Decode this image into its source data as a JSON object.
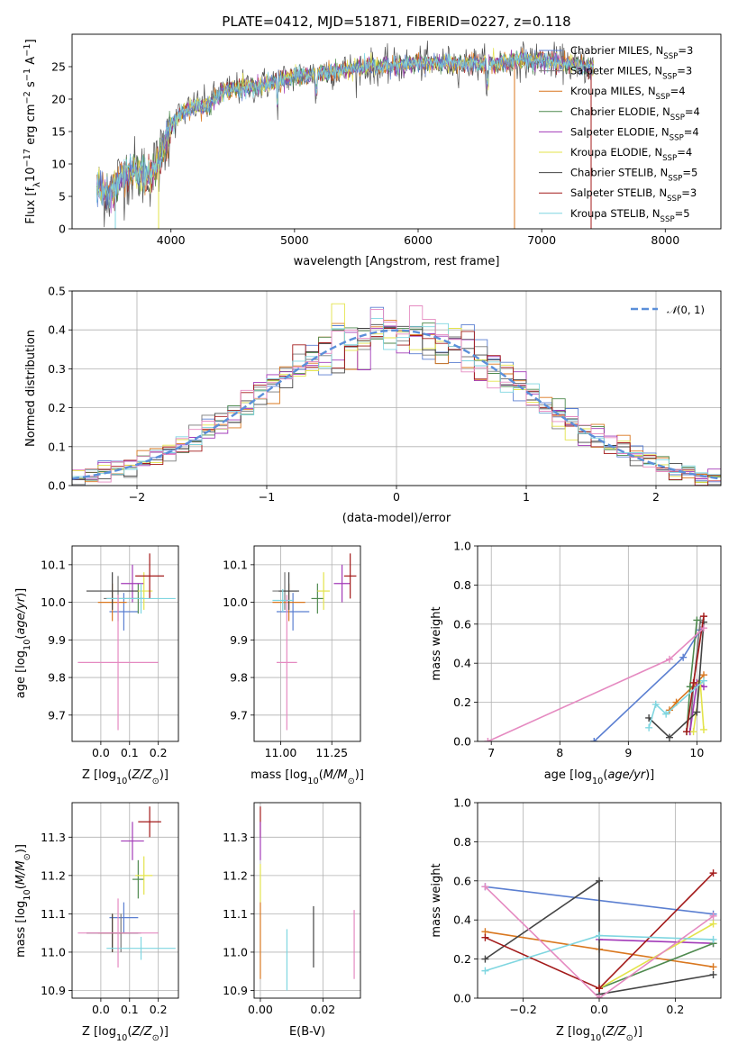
{
  "title": "PLATE=0412, MJD=51871, FIBERID=0227, z=0.118",
  "colors": {
    "Chabrier MILES": "#5b7fd1",
    "Salpeter MILES": "#7a7a7a",
    "Kroupa MILES": "#d9771f",
    "Chabrier ELODIE": "#4f8a4f",
    "Salpeter ELODIE": "#a23ab8",
    "Kroupa ELODIE": "#e3e34a",
    "Chabrier STELIB": "#444444",
    "Salpeter STELIB": "#a31a1a",
    "Kroupa STELIB": "#7fd6e0",
    "pink": "#e58ac1",
    "gaussian": "#5b8fd9",
    "grid": "#b0b0b0"
  },
  "chart_data": [
    {
      "id": "spectrum",
      "type": "line",
      "xlabel": "wavelength [Angstrom, rest frame]",
      "ylabel": "Flux [f_λ10^-17 erg cm^-2 s^-1 A^-1]",
      "xlim": [
        3200,
        8450
      ],
      "ylim": [
        0,
        30
      ],
      "xticks": [
        4000,
        5000,
        6000,
        7000,
        8000
      ],
      "yticks": [
        0,
        5,
        10,
        15,
        20,
        25
      ],
      "legend": "right",
      "series_labels": [
        "Chabrier MILES, N_SSP=3",
        "Salpeter MILES, N_SSP=3",
        "Kroupa MILES, N_SSP=4",
        "Chabrier ELODIE, N_SSP=4",
        "Salpeter ELODIE, N_SSP=4",
        "Kroupa ELODIE, N_SSP=4",
        "Chabrier STELIB, N_SSP=5",
        "Salpeter STELIB, N_SSP=3",
        "Kroupa STELIB, N_SSP=5"
      ],
      "continuum_points": [
        [
          3400,
          6
        ],
        [
          3500,
          5.5
        ],
        [
          3600,
          8
        ],
        [
          3700,
          9
        ],
        [
          3800,
          8
        ],
        [
          3900,
          10
        ],
        [
          4000,
          16
        ],
        [
          4100,
          18
        ],
        [
          4200,
          19
        ],
        [
          4300,
          19
        ],
        [
          4400,
          21
        ],
        [
          4500,
          21.5
        ],
        [
          4700,
          22
        ],
        [
          4800,
          22.5
        ],
        [
          5000,
          23.5
        ],
        [
          5200,
          24
        ],
        [
          5400,
          24.5
        ],
        [
          5600,
          25
        ],
        [
          5800,
          25
        ],
        [
          6000,
          25.5
        ],
        [
          6200,
          25.5
        ],
        [
          6400,
          25.5
        ],
        [
          6600,
          25.5
        ],
        [
          6800,
          26
        ],
        [
          7000,
          26
        ],
        [
          7200,
          25.5
        ],
        [
          7400,
          25
        ]
      ]
    },
    {
      "id": "residuals",
      "type": "step",
      "xlabel": "(data-model)/error",
      "ylabel": "Normed distribution",
      "xlim": [
        -2.5,
        2.5
      ],
      "ylim": [
        0,
        0.5
      ],
      "xticks": [
        -2,
        -1,
        0,
        1,
        2
      ],
      "yticks": [
        0.0,
        0.1,
        0.2,
        0.3,
        0.4,
        0.5
      ],
      "legend_label": "𝒩(0, 1)",
      "legend": "top-right",
      "histograms": 9
    },
    {
      "id": "age_vs_Z",
      "type": "scatter",
      "xlabel": "Z [log10(Z/Z⊙)]",
      "ylabel": "age  [log10(age/yr)]",
      "xlim": [
        -0.1,
        0.27
      ],
      "ylim": [
        9.63,
        10.15
      ],
      "xticks": [
        0.0,
        0.1,
        0.2
      ],
      "yticks": [
        9.7,
        9.8,
        9.9,
        10.0,
        10.1
      ],
      "points": [
        {
          "c": "Chabrier MILES",
          "x": 0.08,
          "xerr": 0.05,
          "y": 9.975,
          "yerr": 0.05
        },
        {
          "c": "Salpeter MILES",
          "x": 0.06,
          "xerr": 0.05,
          "y": 10.01,
          "yerr": 0.06
        },
        {
          "c": "Kroupa MILES",
          "x": 0.04,
          "xerr": 0.05,
          "y": 10.0,
          "yerr": 0.05
        },
        {
          "c": "Chabrier ELODIE",
          "x": 0.13,
          "xerr": 0.02,
          "y": 10.01,
          "yerr": 0.04
        },
        {
          "c": "Salpeter ELODIE",
          "x": 0.11,
          "xerr": 0.04,
          "y": 10.05,
          "yerr": 0.05
        },
        {
          "c": "Kroupa ELODIE",
          "x": 0.15,
          "xerr": 0.03,
          "y": 10.03,
          "yerr": 0.05
        },
        {
          "c": "Chabrier STELIB",
          "x": 0.04,
          "xerr": 0.09,
          "y": 10.03,
          "yerr": 0.05
        },
        {
          "c": "Salpeter STELIB",
          "x": 0.17,
          "xerr": 0.05,
          "y": 10.07,
          "yerr": 0.06
        },
        {
          "c": "Kroupa STELIB",
          "x": 0.14,
          "xerr": 0.12,
          "y": 10.01,
          "yerr": 0.04
        },
        {
          "c": "pink",
          "x": 0.06,
          "xerr": 0.14,
          "y": 9.84,
          "yerr": 0.18
        }
      ]
    },
    {
      "id": "age_vs_mass",
      "type": "scatter",
      "xlabel": "mass [log10(M/M⊙)]",
      "xlim": [
        10.87,
        11.39
      ],
      "ylim": [
        9.63,
        10.15
      ],
      "xticks": [
        11.0,
        11.25
      ],
      "yticks": [
        9.7,
        9.8,
        9.9,
        10.0,
        10.1
      ],
      "points": [
        {
          "c": "Chabrier MILES",
          "x": 11.06,
          "xerr": 0.08,
          "y": 9.975,
          "yerr": 0.05
        },
        {
          "c": "Salpeter MILES",
          "x": 11.02,
          "xerr": 0.06,
          "y": 10.03,
          "yerr": 0.05
        },
        {
          "c": "Kroupa MILES",
          "x": 11.04,
          "xerr": 0.08,
          "y": 10.0,
          "yerr": 0.05
        },
        {
          "c": "Chabrier ELODIE",
          "x": 11.18,
          "xerr": 0.03,
          "y": 10.01,
          "yerr": 0.04
        },
        {
          "c": "Salpeter ELODIE",
          "x": 11.3,
          "xerr": 0.04,
          "y": 10.05,
          "yerr": 0.05
        },
        {
          "c": "Kroupa ELODIE",
          "x": 11.21,
          "xerr": 0.03,
          "y": 10.03,
          "yerr": 0.05
        },
        {
          "c": "Chabrier STELIB",
          "x": 11.04,
          "xerr": 0.05,
          "y": 10.03,
          "yerr": 0.05
        },
        {
          "c": "Salpeter STELIB",
          "x": 11.34,
          "xerr": 0.03,
          "y": 10.07,
          "yerr": 0.06
        },
        {
          "c": "Kroupa STELIB",
          "x": 11.01,
          "xerr": 0.05,
          "y": 10.005,
          "yerr": 0.03
        },
        {
          "c": "pink",
          "x": 11.03,
          "xerr": 0.05,
          "y": 9.84,
          "yerr": 0.18
        }
      ]
    },
    {
      "id": "weight_vs_age",
      "type": "line",
      "xlabel": "age  [log10(age/yr)]",
      "ylabel": "mass weight",
      "xlim": [
        6.8,
        10.35
      ],
      "ylim": [
        0,
        1.0
      ],
      "xticks": [
        7,
        8,
        9,
        10
      ],
      "yticks": [
        0.0,
        0.2,
        0.4,
        0.6,
        0.8,
        1.0
      ],
      "series": [
        {
          "c": "Chabrier MILES",
          "x": [
            8.5,
            9.8,
            10.05
          ],
          "y": [
            0.0,
            0.43,
            0.57
          ]
        },
        {
          "c": "Salpeter MILES",
          "x": [
            9.9,
            9.95,
            10.05
          ],
          "y": [
            0.05,
            0.28,
            0.62
          ]
        },
        {
          "c": "Kroupa MILES",
          "x": [
            9.6,
            9.7,
            10.0,
            10.1
          ],
          "y": [
            0.16,
            0.2,
            0.3,
            0.34
          ]
        },
        {
          "c": "Chabrier ELODIE",
          "x": [
            9.85,
            9.9,
            10.0
          ],
          "y": [
            0.05,
            0.28,
            0.62
          ]
        },
        {
          "c": "Salpeter ELODIE",
          "x": [
            9.9,
            10.0,
            10.1
          ],
          "y": [
            0.05,
            0.3,
            0.28
          ]
        },
        {
          "c": "Kroupa ELODIE",
          "x": [
            9.95,
            10.05,
            10.1
          ],
          "y": [
            0.05,
            0.3,
            0.06
          ]
        },
        {
          "c": "Chabrier STELIB",
          "x": [
            9.3,
            9.6,
            10.0,
            10.1
          ],
          "y": [
            0.12,
            0.02,
            0.15,
            0.61
          ]
        },
        {
          "c": "Salpeter STELIB",
          "x": [
            9.85,
            9.95,
            10.1
          ],
          "y": [
            0.05,
            0.3,
            0.64
          ]
        },
        {
          "c": "Kroupa STELIB",
          "x": [
            9.3,
            9.4,
            9.55,
            10.1
          ],
          "y": [
            0.07,
            0.19,
            0.14,
            0.31
          ]
        },
        {
          "c": "pink",
          "x": [
            6.95,
            9.6,
            10.1
          ],
          "y": [
            0.0,
            0.42,
            0.58
          ]
        }
      ]
    },
    {
      "id": "mass_vs_Z",
      "type": "scatter",
      "xlabel": "Z [log10(Z/Z⊙)]",
      "ylabel": "mass [log10(M/M⊙)]",
      "xlim": [
        -0.1,
        0.27
      ],
      "ylim": [
        10.88,
        11.39
      ],
      "xticks": [
        0.0,
        0.1,
        0.2
      ],
      "yticks": [
        10.9,
        11.0,
        11.1,
        11.2,
        11.3
      ],
      "points": [
        {
          "c": "Chabrier MILES",
          "x": 0.08,
          "xerr": 0.05,
          "y": 11.09,
          "yerr": 0.04
        },
        {
          "c": "Salpeter MILES",
          "x": 0.07,
          "xerr": 0.07,
          "y": 11.05,
          "yerr": 0.05
        },
        {
          "c": "Kroupa MILES",
          "x": 0.04,
          "xerr": 0.05,
          "y": 11.05,
          "yerr": 0.05
        },
        {
          "c": "Chabrier ELODIE",
          "x": 0.13,
          "xerr": 0.02,
          "y": 11.19,
          "yerr": 0.05
        },
        {
          "c": "Salpeter ELODIE",
          "x": 0.11,
          "xerr": 0.04,
          "y": 11.29,
          "yerr": 0.05
        },
        {
          "c": "Kroupa ELODIE",
          "x": 0.15,
          "xerr": 0.03,
          "y": 11.2,
          "yerr": 0.05
        },
        {
          "c": "Chabrier STELIB",
          "x": 0.04,
          "xerr": 0.09,
          "y": 11.05,
          "yerr": 0.05
        },
        {
          "c": "Salpeter STELIB",
          "x": 0.17,
          "xerr": 0.04,
          "y": 11.34,
          "yerr": 0.04
        },
        {
          "c": "Kroupa STELIB",
          "x": 0.14,
          "xerr": 0.12,
          "y": 11.01,
          "yerr": 0.03
        },
        {
          "c": "pink",
          "x": 0.06,
          "xerr": 0.14,
          "y": 11.05,
          "yerr": 0.09
        }
      ]
    },
    {
      "id": "mass_vs_ebv",
      "type": "scatter",
      "xlabel": "E(B-V)",
      "xlim": [
        -0.002,
        0.032
      ],
      "ylim": [
        10.88,
        11.39
      ],
      "xticks": [
        0.0,
        0.02
      ],
      "yticks": [
        10.9,
        11.0,
        11.1,
        11.2,
        11.3
      ],
      "points": [
        {
          "c": "Salpeter STELIB",
          "x": 0.0,
          "xerr": 0,
          "y": 11.34,
          "yerr": 0.04
        },
        {
          "c": "Salpeter ELODIE",
          "x": 0.0,
          "xerr": 0,
          "y": 11.29,
          "yerr": 0.05
        },
        {
          "c": "Kroupa ELODIE",
          "x": 0.0,
          "xerr": 0,
          "y": 11.18,
          "yerr": 0.05
        },
        {
          "c": "Kroupa MILES",
          "x": 0.0,
          "xerr": 0,
          "y": 11.03,
          "yerr": 0.1
        },
        {
          "c": "Kroupa STELIB",
          "x": 0.0085,
          "xerr": 0,
          "y": 10.98,
          "yerr": 0.08
        },
        {
          "c": "Chabrier STELIB",
          "x": 0.017,
          "xerr": 0,
          "y": 11.04,
          "yerr": 0.08
        },
        {
          "c": "pink",
          "x": 0.03,
          "xerr": 0,
          "y": 11.02,
          "yerr": 0.09
        }
      ]
    },
    {
      "id": "weight_vs_Z",
      "type": "line",
      "xlabel": "Z [log10(Z/Z⊙)]",
      "ylabel": "mass weight",
      "xlim": [
        -0.32,
        0.32
      ],
      "ylim": [
        0,
        1.0
      ],
      "xticks": [
        -0.2,
        0.0,
        0.2
      ],
      "yticks": [
        0.0,
        0.2,
        0.4,
        0.6,
        0.8,
        1.0
      ],
      "series": [
        {
          "c": "Chabrier MILES",
          "x": [
            -0.3,
            0.3
          ],
          "y": [
            0.57,
            0.43
          ]
        },
        {
          "c": "Kroupa MILES",
          "x": [
            -0.3,
            0.0,
            0.3
          ],
          "y": [
            0.34,
            0.25,
            0.16
          ]
        },
        {
          "c": "Salpeter ELODIE",
          "x": [
            0.0,
            0.3
          ],
          "y": [
            0.3,
            0.28
          ]
        },
        {
          "c": "Chabrier ELODIE",
          "x": [
            0.0,
            0.3
          ],
          "y": [
            0.05,
            0.28
          ]
        },
        {
          "c": "Kroupa ELODIE",
          "x": [
            0.0,
            0.3
          ],
          "y": [
            0.05,
            0.38
          ]
        },
        {
          "c": "Chabrier STELIB",
          "x": [
            -0.3,
            0.0,
            0.0,
            0.3
          ],
          "y": [
            0.2,
            0.6,
            0.02,
            0.12
          ]
        },
        {
          "c": "Salpeter STELIB",
          "x": [
            -0.3,
            0.0,
            0.3
          ],
          "y": [
            0.31,
            0.05,
            0.64
          ]
        },
        {
          "c": "Kroupa STELIB",
          "x": [
            -0.3,
            0.0,
            0.3
          ],
          "y": [
            0.14,
            0.32,
            0.3
          ]
        },
        {
          "c": "pink",
          "x": [
            -0.3,
            0.0,
            0.3
          ],
          "y": [
            0.57,
            0.0,
            0.42
          ]
        }
      ]
    }
  ]
}
